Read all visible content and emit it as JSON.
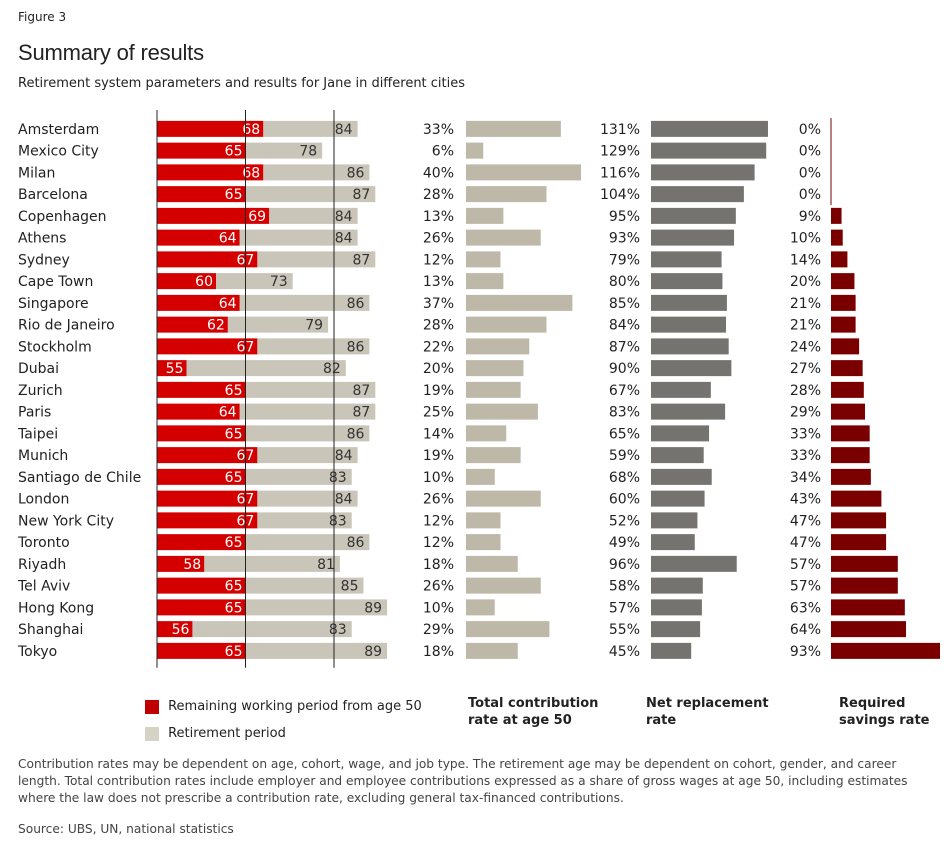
{
  "figure_label": "Figure 3",
  "title": "Summary of results",
  "subtitle": "Retirement system parameters and results for Jane in different cities",
  "legend": {
    "working": "Remaining working period from age 50",
    "retirement": "Retirement period"
  },
  "column_headers": {
    "contribution": [
      "Total contribution",
      "rate at age 50"
    ],
    "replacement": [
      "Net replacement",
      "rate"
    ],
    "savings": [
      "Required",
      "savings rate"
    ]
  },
  "note": "Contribution rates may be dependent on age, cohort, wage, and job type. The retirement age may be dependent on cohort, gender, and career length. Total contribution rates include employer and employee contributions expressed as a share of gross wages at age 50, including estimates where the law does not prescribe a contribution rate, excluding general tax-financed contributions.",
  "source": "Source: UBS, UN, national statistics",
  "colors": {
    "working": "#d40000",
    "retirement": "#c9c5b9",
    "contribution": "#bdb8a8",
    "replacement": "#757370",
    "savings": "#7a0000"
  },
  "chart_data": {
    "type": "bar",
    "categories": [
      "Amsterdam",
      "Mexico City",
      "Milan",
      "Barcelona",
      "Copenhagen",
      "Athens",
      "Sydney",
      "Cape Town",
      "Singapore",
      "Rio de Janeiro",
      "Stockholm",
      "Dubai",
      "Zurich",
      "Paris",
      "Taipei",
      "Munich",
      "Santiago de Chile",
      "London",
      "New York City",
      "Toronto",
      "Riyadh",
      "Tel Aviv",
      "Hong Kong",
      "Shanghai",
      "Tokyo"
    ],
    "retirement_age": [
      68,
      65,
      68,
      65,
      69,
      64,
      67,
      60,
      64,
      62,
      67,
      55,
      65,
      64,
      65,
      67,
      65,
      67,
      67,
      65,
      58,
      65,
      65,
      56,
      65
    ],
    "life_expectancy": [
      84,
      78,
      86,
      87,
      84,
      84,
      87,
      73,
      86,
      79,
      86,
      82,
      87,
      87,
      86,
      84,
      83,
      84,
      83,
      86,
      81,
      85,
      89,
      83,
      89
    ],
    "contribution_rate": [
      "33%",
      "6%",
      "40%",
      "28%",
      "13%",
      "26%",
      "12%",
      "13%",
      "37%",
      "28%",
      "22%",
      "20%",
      "19%",
      "25%",
      "14%",
      "19%",
      "10%",
      "26%",
      "12%",
      "12%",
      "18%",
      "26%",
      "10%",
      "29%",
      "18%"
    ],
    "net_replacement_rate": [
      "131%",
      "129%",
      "116%",
      "104%",
      "95%",
      "93%",
      "79%",
      "80%",
      "85%",
      "84%",
      "87%",
      "90%",
      "67%",
      "83%",
      "65%",
      "59%",
      "68%",
      "60%",
      "52%",
      "49%",
      "96%",
      "58%",
      "57%",
      "55%",
      "45%"
    ],
    "required_savings_rate": [
      "0%",
      "0%",
      "0%",
      "0%",
      "9%",
      "10%",
      "14%",
      "20%",
      "21%",
      "21%",
      "24%",
      "27%",
      "28%",
      "29%",
      "33%",
      "33%",
      "34%",
      "43%",
      "47%",
      "47%",
      "57%",
      "57%",
      "63%",
      "64%",
      "93%"
    ],
    "series": [
      {
        "name": "Remaining working period from age 50"
      },
      {
        "name": "Retirement period"
      },
      {
        "name": "Total contribution rate at age 50"
      },
      {
        "name": "Net replacement rate"
      },
      {
        "name": "Required savings rate"
      }
    ],
    "grid": false
  }
}
